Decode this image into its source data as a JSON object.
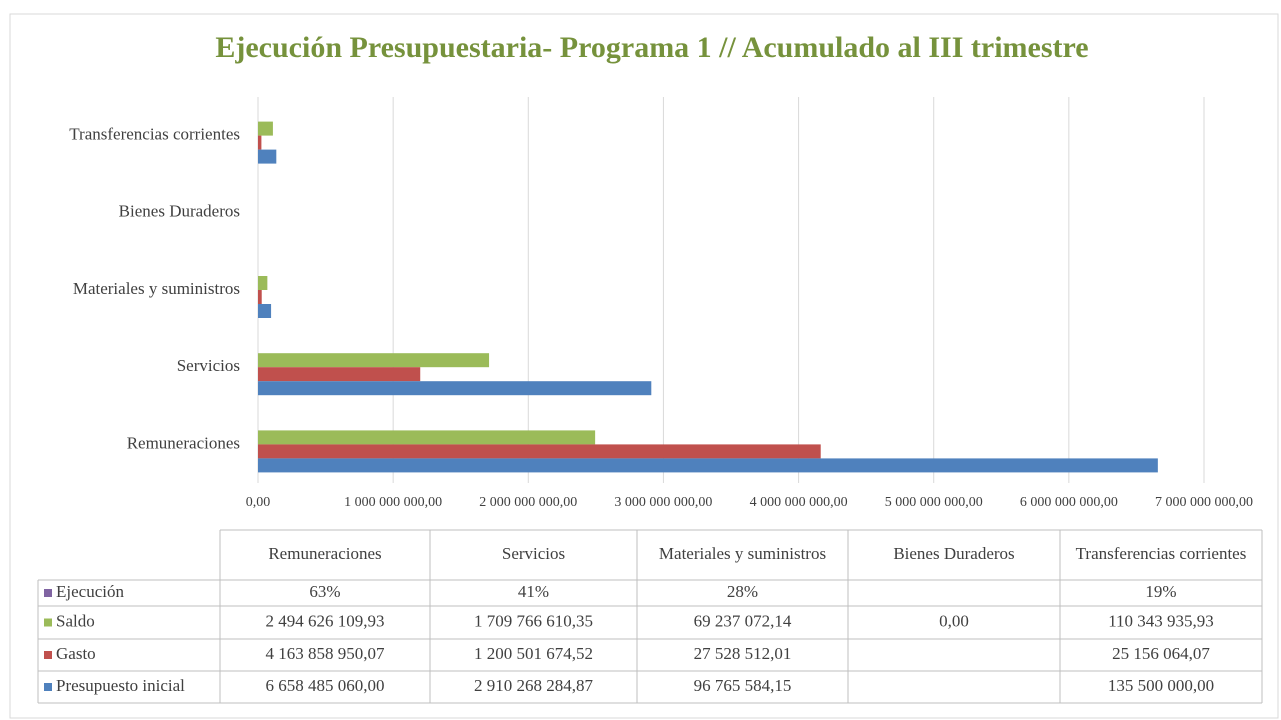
{
  "chart_data": {
    "type": "bar",
    "orientation": "horizontal",
    "title": "Ejecución Presupuestaria- Programa 1 // Acumulado al III trimestre",
    "categories": [
      "Remuneraciones",
      "Servicios",
      "Materiales y suministros",
      "Bienes Duraderos",
      "Transferencias corrientes"
    ],
    "series": [
      {
        "name": "Ejecución",
        "color": "#8064a2",
        "values": [
          63,
          41,
          28,
          null,
          19
        ],
        "value_labels": [
          "63%",
          "41%",
          "28%",
          null,
          "19%"
        ]
      },
      {
        "name": "Saldo",
        "color": "#9bbb59",
        "values": [
          2494626109.93,
          1709766610.35,
          69237072.14,
          0,
          110343935.93
        ],
        "value_labels": [
          "2 494 626 109,93",
          "1 709 766 610,35",
          "69 237 072,14",
          "0,00",
          "110 343 935,93"
        ]
      },
      {
        "name": "Gasto",
        "color": "#c0504d",
        "values": [
          4163858950.07,
          1200501674.52,
          27528512.01,
          null,
          25156064.07
        ],
        "value_labels": [
          "4 163 858 950,07",
          "1 200 501 674,52",
          "27 528 512,01",
          null,
          "25 156 064,07"
        ]
      },
      {
        "name": "Presupuesto inicial",
        "color": "#4f81bd",
        "values": [
          6658485060.0,
          2910268284.87,
          96765584.15,
          null,
          135500000.0
        ],
        "value_labels": [
          "6 658 485 060,00",
          "2 910 268 284,87",
          "96 765 584,15",
          null,
          "135 500 000,00"
        ]
      }
    ],
    "xlim": [
      0,
      7000000000
    ],
    "xticks": [
      {
        "value": 0,
        "label": "0,00"
      },
      {
        "value": 1000000000,
        "label": "1 000 000 000,00"
      },
      {
        "value": 2000000000,
        "label": "2 000 000 000,00"
      },
      {
        "value": 3000000000,
        "label": "3 000 000 000,00"
      },
      {
        "value": 4000000000,
        "label": "4 000 000 000,00"
      },
      {
        "value": 5000000000,
        "label": "5 000 000 000,00"
      },
      {
        "value": 6000000000,
        "label": "6 000 000 000,00"
      },
      {
        "value": 7000000000,
        "label": "7 000 000 000,00"
      }
    ],
    "grid": true,
    "data_table": true
  }
}
